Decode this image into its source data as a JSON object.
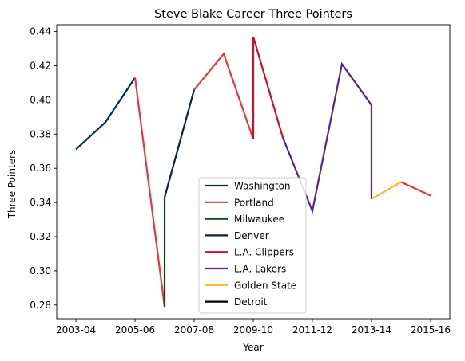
{
  "chart_data": {
    "type": "line",
    "title": "Steve Blake Career Three Pointers",
    "xlabel": "Year",
    "ylabel": "Three Pointers",
    "x_tick_labels": [
      "2003-04",
      "2005-06",
      "2007-08",
      "2009-10",
      "2011-12",
      "2013-14",
      "2015-16"
    ],
    "x_tick_values": [
      0,
      2,
      4,
      6,
      8,
      10,
      12
    ],
    "xlim": [
      -0.65,
      12.65
    ],
    "y_ticks": [
      0.28,
      0.3,
      0.32,
      0.34,
      0.36,
      0.38,
      0.4,
      0.42,
      0.44
    ],
    "y_tick_labels": [
      "0.28",
      "0.30",
      "0.32",
      "0.34",
      "0.36",
      "0.38",
      "0.40",
      "0.42",
      "0.44"
    ],
    "ylim": [
      0.272,
      0.444
    ],
    "legend_position": "lower-center",
    "series": [
      {
        "name": "Washington",
        "color": "#002B5C",
        "x": [
          0,
          1,
          2
        ],
        "y": [
          0.371,
          0.387,
          0.413
        ]
      },
      {
        "name": "Portland",
        "color": "#E03A3E",
        "x": [
          2,
          3
        ],
        "y": [
          0.413,
          0.279
        ]
      },
      {
        "name": "Milwaukee",
        "color": "#00471B",
        "x": [
          3,
          3
        ],
        "y": [
          0.279,
          0.343
        ]
      },
      {
        "name": "Denver",
        "color": "#0E2240",
        "x": [
          3,
          4
        ],
        "y": [
          0.343,
          0.406
        ]
      },
      {
        "name": "Portland",
        "color": "#E03A3E",
        "x": [
          4,
          5,
          6
        ],
        "y": [
          0.406,
          0.427,
          0.377
        ]
      },
      {
        "name": "L.A. Clippers",
        "color": "#C8102E",
        "x": [
          6,
          6,
          7
        ],
        "y": [
          0.377,
          0.437,
          0.378
        ]
      },
      {
        "name": "L.A. Lakers",
        "color": "#552583",
        "x": [
          7,
          8,
          9,
          10,
          10
        ],
        "y": [
          0.378,
          0.335,
          0.421,
          0.397,
          0.342
        ]
      },
      {
        "name": "Golden State",
        "color": "#FDB927",
        "x": [
          10,
          11
        ],
        "y": [
          0.342,
          0.352
        ]
      },
      {
        "name": "Portland",
        "color": "#E03A3E",
        "x": [
          11,
          12
        ],
        "y": [
          0.352,
          0.344
        ]
      },
      {
        "name": "Detroit",
        "color": "#000000",
        "x": [
          12
        ],
        "y": [
          0.344
        ]
      }
    ],
    "legend": [
      {
        "label": "Washington",
        "color": "#002B5C"
      },
      {
        "label": "Portland",
        "color": "#E03A3E"
      },
      {
        "label": "Milwaukee",
        "color": "#00471B"
      },
      {
        "label": "Denver",
        "color": "#0E2240"
      },
      {
        "label": "L.A. Clippers",
        "color": "#C8102E"
      },
      {
        "label": "L.A. Lakers",
        "color": "#552583"
      },
      {
        "label": "Golden State",
        "color": "#FDB927"
      },
      {
        "label": "Detroit",
        "color": "#000000"
      }
    ]
  }
}
